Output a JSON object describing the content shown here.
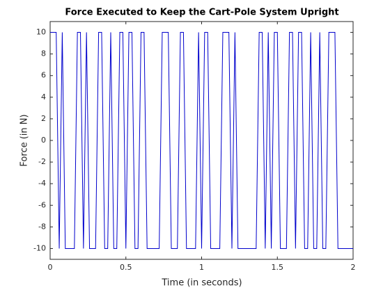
{
  "chart_data": {
    "type": "line",
    "title": "Force Executed to Keep the Cart-Pole System Upright",
    "x_label": "Time (in seconds)",
    "y_label": "Force (in N)",
    "x": [
      0,
      0.02,
      0.04,
      0.06,
      0.08,
      0.1,
      0.12,
      0.14,
      0.16,
      0.18,
      0.2,
      0.22,
      0.24,
      0.26,
      0.28,
      0.3,
      0.32,
      0.34,
      0.36,
      0.38,
      0.4,
      0.42,
      0.44,
      0.46,
      0.48,
      0.5,
      0.52,
      0.54,
      0.56,
      0.58,
      0.6,
      0.62,
      0.64,
      0.66,
      0.68,
      0.7,
      0.72,
      0.74,
      0.76,
      0.78,
      0.8,
      0.82,
      0.84,
      0.86,
      0.88,
      0.9,
      0.92,
      0.94,
      0.96,
      0.98,
      1,
      1.02,
      1.04,
      1.06,
      1.08,
      1.1,
      1.12,
      1.14,
      1.16,
      1.18,
      1.2,
      1.22,
      1.24,
      1.26,
      1.28,
      1.3,
      1.32,
      1.34,
      1.36,
      1.38,
      1.4,
      1.42,
      1.44,
      1.46,
      1.48,
      1.5,
      1.52,
      1.54,
      1.56,
      1.58,
      1.6,
      1.62,
      1.64,
      1.66,
      1.68,
      1.7,
      1.72,
      1.74,
      1.76,
      1.78,
      1.8,
      1.82,
      1.84,
      1.86,
      1.88,
      1.9,
      1.92,
      1.94,
      1.96,
      1.98,
      2
    ],
    "series": [
      {
        "color": "#0000cc",
        "values": [
          10,
          10,
          10,
          -10,
          10,
          -10,
          -10,
          -10,
          -10,
          10,
          10,
          -10,
          10,
          -10,
          -10,
          -10,
          10,
          10,
          -10,
          -10,
          10,
          -10,
          -10,
          10,
          10,
          -10,
          10,
          10,
          -10,
          -10,
          10,
          10,
          -10,
          -10,
          -10,
          -10,
          -10,
          10,
          10,
          10,
          -10,
          -10,
          -10,
          10,
          10,
          -10,
          -10,
          -10,
          -10,
          10,
          -10,
          10,
          10,
          -10,
          -10,
          -10,
          -10,
          10,
          10,
          10,
          -10,
          10,
          -10,
          -10,
          -10,
          -10,
          -10,
          -10,
          -10,
          10,
          10,
          -10,
          10,
          -10,
          10,
          10,
          -10,
          -10,
          -10,
          10,
          10,
          -10,
          10,
          10,
          -10,
          -10,
          10,
          -10,
          -10,
          10,
          -10,
          -10,
          10,
          10,
          10,
          -10,
          -10,
          -10,
          -10,
          -10,
          -10
        ]
      }
    ],
    "xlim": [
      0,
      2
    ],
    "xticks": [
      0,
      0.5,
      1,
      1.5,
      2
    ],
    "ylim": [
      -11,
      11
    ],
    "yticks": [
      -10,
      -8,
      -6,
      -4,
      -2,
      0,
      2,
      4,
      6,
      8,
      10
    ],
    "grid": false
  }
}
